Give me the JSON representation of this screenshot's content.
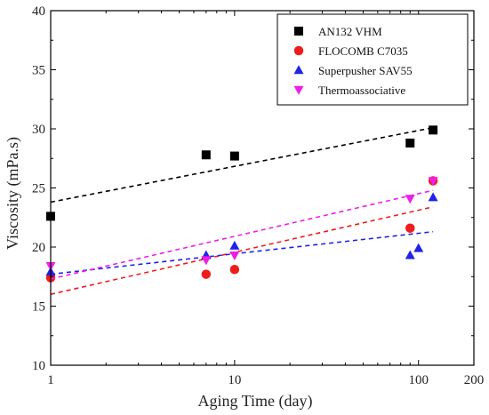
{
  "chart_data": {
    "type": "scatter",
    "title": "",
    "xlabel": "Aging Time (day)",
    "ylabel": "Viscosity (mPa.s)",
    "xscale": "log",
    "xlim": [
      1,
      200
    ],
    "ylim": [
      10,
      40
    ],
    "x_ticks": [
      1,
      10,
      100,
      200
    ],
    "x_tick_labels": [
      "1",
      "10",
      "100",
      "200"
    ],
    "y_ticks": [
      10,
      15,
      20,
      25,
      30,
      35,
      40
    ],
    "y_tick_labels": [
      "10",
      "15",
      "20",
      "25",
      "30",
      "35",
      "40"
    ],
    "grid": false,
    "legend_position": "top-right",
    "series": [
      {
        "name": "AN132 VHM",
        "marker": "square",
        "color": "#000000",
        "points": [
          {
            "x": 1,
            "y": 22.6
          },
          {
            "x": 7,
            "y": 27.8
          },
          {
            "x": 10,
            "y": 27.7
          },
          {
            "x": 90,
            "y": 28.8
          },
          {
            "x": 120,
            "y": 29.9
          }
        ],
        "trend": [
          {
            "x": 1,
            "y": 23.8
          },
          {
            "x": 120,
            "y": 30.1
          }
        ]
      },
      {
        "name": "FLOCOMB C7035",
        "marker": "circle",
        "color": "#ee1c1c",
        "points": [
          {
            "x": 1,
            "y": 17.4
          },
          {
            "x": 7,
            "y": 17.7
          },
          {
            "x": 10,
            "y": 18.1
          },
          {
            "x": 90,
            "y": 21.6
          },
          {
            "x": 120,
            "y": 25.6
          }
        ],
        "trend": [
          {
            "x": 1,
            "y": 16.0
          },
          {
            "x": 120,
            "y": 23.4
          }
        ]
      },
      {
        "name": "Superpusher SAV55",
        "marker": "triangle-up",
        "color": "#1f24e6",
        "points": [
          {
            "x": 1,
            "y": 17.9
          },
          {
            "x": 7,
            "y": 19.3
          },
          {
            "x": 10,
            "y": 20.1
          },
          {
            "x": 90,
            "y": 19.3
          },
          {
            "x": 100,
            "y": 19.9
          },
          {
            "x": 120,
            "y": 24.2
          }
        ],
        "trend": [
          {
            "x": 1,
            "y": 17.7
          },
          {
            "x": 120,
            "y": 21.3
          }
        ]
      },
      {
        "name": "Thermoassociative",
        "marker": "triangle-down",
        "color": "#ee1ee8",
        "points": [
          {
            "x": 1,
            "y": 18.4
          },
          {
            "x": 7,
            "y": 18.9
          },
          {
            "x": 10,
            "y": 19.3
          },
          {
            "x": 90,
            "y": 24.1
          },
          {
            "x": 120,
            "y": 25.6
          }
        ],
        "trend": [
          {
            "x": 1,
            "y": 17.3
          },
          {
            "x": 120,
            "y": 24.8
          }
        ]
      }
    ]
  }
}
